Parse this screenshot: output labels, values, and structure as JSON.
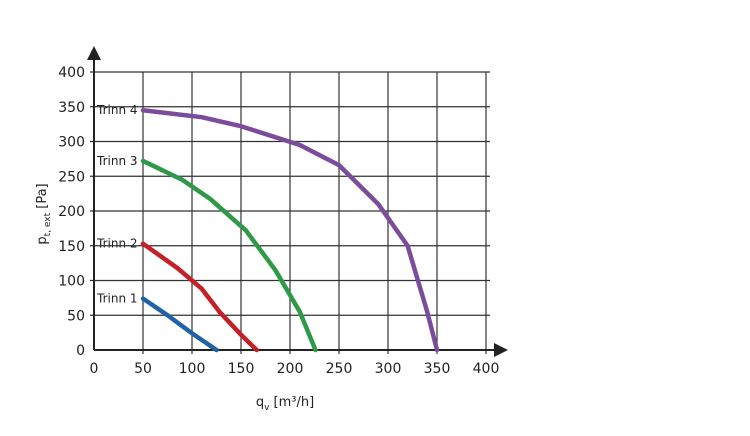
{
  "chart_data": {
    "type": "line",
    "xlabel": {
      "main": "q",
      "sub": "v",
      "unit": " [m³/h]"
    },
    "ylabel": {
      "main": "p",
      "sub": "t, ext",
      "unit": " [Pa]"
    },
    "xlim": [
      0,
      400
    ],
    "ylim": [
      0,
      400
    ],
    "x_ticks": [
      0,
      50,
      100,
      150,
      200,
      250,
      300,
      350,
      400
    ],
    "y_ticks": [
      0,
      50,
      100,
      150,
      200,
      250,
      300,
      350,
      400
    ],
    "grid": true,
    "series": [
      {
        "name": "Trinn 1",
        "color": "#1f63a6",
        "points": [
          [
            50,
            74
          ],
          [
            75,
            50
          ],
          [
            100,
            24
          ],
          [
            125,
            0
          ]
        ]
      },
      {
        "name": "Trinn 2",
        "color": "#c42027",
        "points": [
          [
            50,
            153
          ],
          [
            85,
            118
          ],
          [
            110,
            88
          ],
          [
            128,
            55
          ],
          [
            150,
            22
          ],
          [
            166,
            0
          ]
        ]
      },
      {
        "name": "Trinn 3",
        "color": "#2e9a47",
        "points": [
          [
            50,
            272
          ],
          [
            90,
            245
          ],
          [
            118,
            218
          ],
          [
            155,
            172
          ],
          [
            185,
            115
          ],
          [
            210,
            55
          ],
          [
            226,
            0
          ]
        ]
      },
      {
        "name": "Trinn 4",
        "color": "#7b4c9c",
        "points": [
          [
            50,
            345
          ],
          [
            110,
            335
          ],
          [
            150,
            322
          ],
          [
            210,
            295
          ],
          [
            250,
            266
          ],
          [
            290,
            210
          ],
          [
            320,
            150
          ],
          [
            340,
            55
          ],
          [
            350,
            0
          ]
        ]
      }
    ]
  }
}
